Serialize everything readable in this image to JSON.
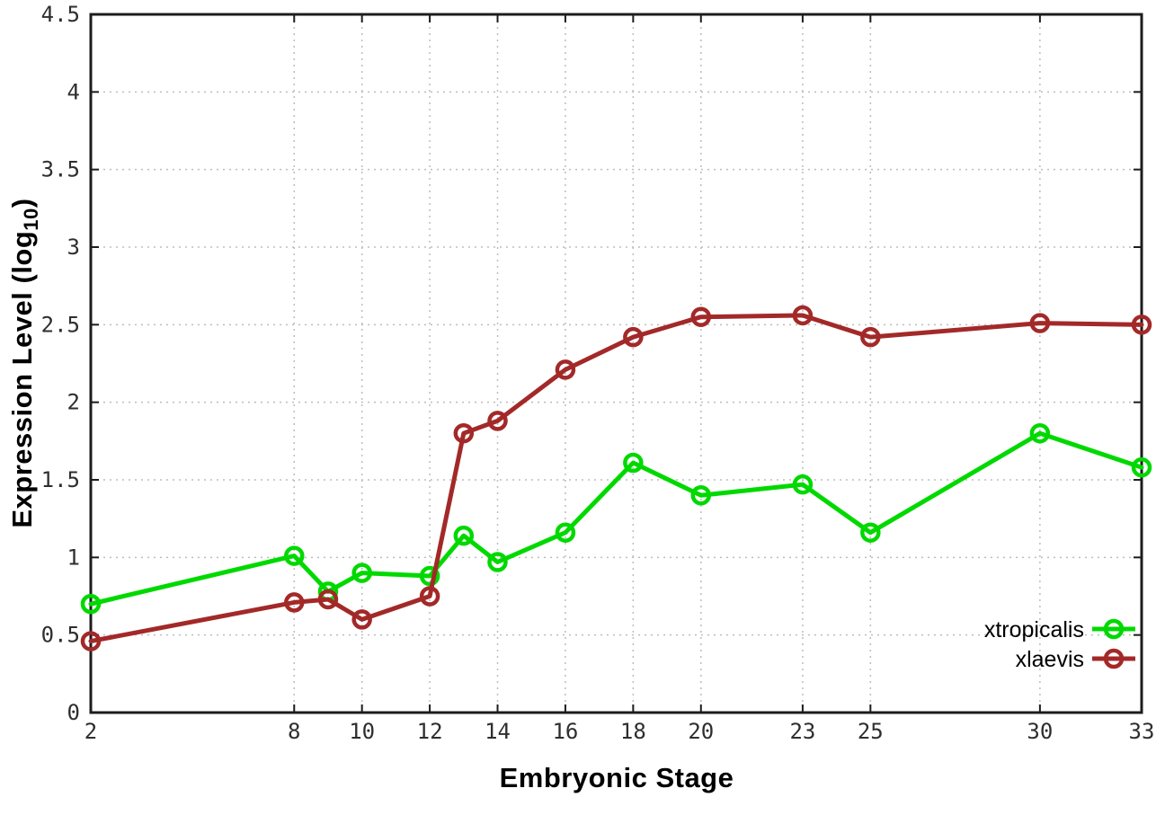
{
  "chart_data": {
    "type": "line",
    "title": "",
    "xlabel": "Embryonic Stage",
    "ylabel": "Expression Level (log10)",
    "ylabel_parts": {
      "prefix": "Expression Level (log",
      "sub": "10",
      "suffix": ")"
    },
    "x": [
      2,
      8,
      9,
      10,
      12,
      13,
      14,
      16,
      18,
      20,
      23,
      25,
      30,
      33
    ],
    "series": [
      {
        "name": "xtropicalis",
        "color": "#00d900",
        "values": [
          0.7,
          1.01,
          0.78,
          0.9,
          0.88,
          1.14,
          0.97,
          1.16,
          1.61,
          1.4,
          1.47,
          1.16,
          1.8,
          1.58
        ]
      },
      {
        "name": "xlaevis",
        "color": "#a32929",
        "values": [
          0.46,
          0.71,
          0.73,
          0.6,
          0.75,
          1.8,
          1.88,
          2.21,
          2.42,
          2.55,
          2.56,
          2.42,
          2.51,
          2.5
        ]
      }
    ],
    "xlim": [
      2,
      33
    ],
    "ylim": [
      0,
      4.5
    ],
    "xtick_labels": [
      "2",
      "8",
      "10",
      "12",
      "14",
      "16",
      "18",
      "20",
      "23",
      "25",
      "30",
      "33"
    ],
    "ytick_labels": [
      "0",
      "0.5",
      "1",
      "1.5",
      "2",
      "2.5",
      "3",
      "3.5",
      "4",
      "4.5"
    ],
    "grid": "dotted",
    "legend_position": "inside-bottom-right",
    "style": {
      "axis_color": "#1c1c1c",
      "grid_color": "#bdbdbd",
      "tick_label_color": "#2e2e2e",
      "background": "#ffffff"
    }
  }
}
